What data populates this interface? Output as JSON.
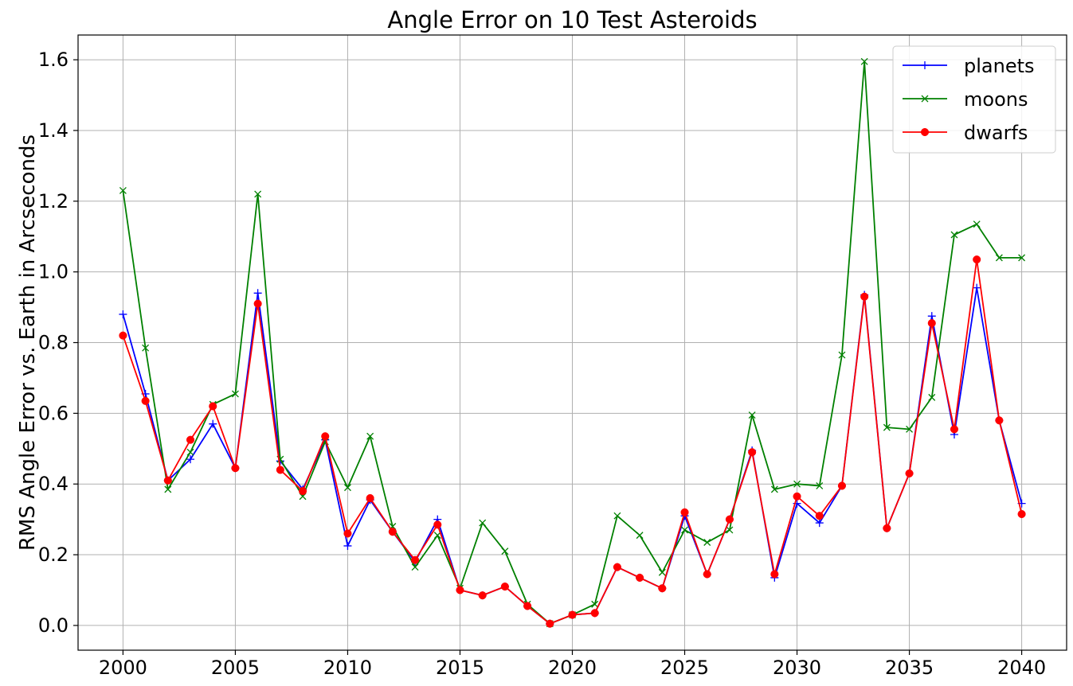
{
  "chart_data": {
    "type": "line",
    "title": "Angle Error on 10 Test Asteroids",
    "xlabel": "",
    "ylabel": "RMS Angle Error vs. Earth in Arcseconds",
    "xlim": [
      1998,
      2042
    ],
    "ylim": [
      -0.07,
      1.67
    ],
    "xticks": [
      2000,
      2005,
      2010,
      2015,
      2020,
      2025,
      2030,
      2035,
      2040
    ],
    "yticks": [
      0.0,
      0.2,
      0.4,
      0.6,
      0.8,
      1.0,
      1.2,
      1.4,
      1.6
    ],
    "ytick_labels": [
      "0.0",
      "0.2",
      "0.4",
      "0.6",
      "0.8",
      "1.0",
      "1.2",
      "1.4",
      "1.6"
    ],
    "grid": true,
    "legend_position": "top-right",
    "x": [
      2000,
      2001,
      2002,
      2003,
      2004,
      2005,
      2006,
      2007,
      2008,
      2009,
      2010,
      2011,
      2012,
      2013,
      2014,
      2015,
      2016,
      2017,
      2018,
      2019,
      2020,
      2021,
      2022,
      2023,
      2024,
      2025,
      2026,
      2027,
      2028,
      2029,
      2030,
      2031,
      2032,
      2033,
      2034,
      2035,
      2036,
      2037,
      2038,
      2039,
      2040
    ],
    "series": [
      {
        "name": "planets",
        "color": "#0000ff",
        "marker": "plus",
        "values": [
          0.88,
          0.655,
          0.41,
          0.47,
          0.57,
          0.445,
          0.94,
          0.465,
          0.385,
          0.525,
          0.225,
          0.355,
          0.265,
          0.18,
          0.3,
          0.1,
          0.085,
          0.11,
          0.055,
          0.005,
          0.03,
          0.035,
          0.165,
          0.135,
          0.105,
          0.31,
          0.145,
          0.3,
          0.495,
          0.135,
          0.345,
          0.29,
          0.395,
          0.935,
          0.275,
          0.43,
          0.875,
          0.54,
          0.955,
          0.58,
          0.345
        ]
      },
      {
        "name": "moons",
        "color": "#008000",
        "marker": "x",
        "values": [
          1.23,
          0.785,
          0.385,
          0.49,
          0.625,
          0.655,
          1.22,
          0.47,
          0.365,
          0.52,
          0.39,
          0.535,
          0.28,
          0.165,
          0.255,
          0.105,
          0.29,
          0.21,
          0.06,
          0.005,
          0.03,
          0.06,
          0.31,
          0.255,
          0.15,
          0.27,
          0.235,
          0.27,
          0.595,
          0.385,
          0.4,
          0.395,
          0.765,
          1.595,
          0.56,
          0.555,
          0.645,
          1.105,
          1.135,
          1.04,
          1.04
        ]
      },
      {
        "name": "dwarfs",
        "color": "#ff0000",
        "marker": "circle",
        "values": [
          0.82,
          0.635,
          0.41,
          0.525,
          0.62,
          0.445,
          0.91,
          0.44,
          0.38,
          0.535,
          0.26,
          0.36,
          0.265,
          0.185,
          0.285,
          0.1,
          0.085,
          0.11,
          0.055,
          0.005,
          0.03,
          0.035,
          0.165,
          0.135,
          0.105,
          0.32,
          0.145,
          0.3,
          0.49,
          0.145,
          0.365,
          0.31,
          0.395,
          0.93,
          0.275,
          0.43,
          0.855,
          0.555,
          1.035,
          0.58,
          0.315
        ]
      }
    ]
  }
}
